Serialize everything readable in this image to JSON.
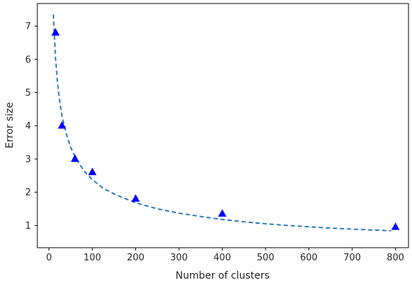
{
  "chart_data": {
    "type": "scatter",
    "title": "",
    "xlabel": "Number of clusters",
    "ylabel": "Error size",
    "xlim": [
      -27,
      830
    ],
    "ylim": [
      0.33,
      7.68
    ],
    "xticks": [
      0,
      100,
      200,
      300,
      400,
      500,
      600,
      700,
      800
    ],
    "yticks": [
      1,
      2,
      3,
      4,
      5,
      6,
      7
    ],
    "grid": false,
    "legend": "none",
    "series": [
      {
        "kind": "points",
        "marker": "triangle",
        "color": "#0000ff",
        "x": [
          15,
          30,
          60,
          100,
          200,
          400,
          800
        ],
        "y": [
          6.8,
          4.0,
          3.0,
          2.6,
          1.8,
          1.35,
          0.95
        ]
      },
      {
        "kind": "fitted-curve",
        "style": "dashed",
        "color": "#2b7bba",
        "x": [
          10,
          15,
          20,
          25,
          30,
          40,
          50,
          60,
          80,
          100,
          125,
          150,
          200,
          250,
          300,
          350,
          400,
          450,
          500,
          550,
          600,
          650,
          700,
          750,
          790
        ],
        "y": [
          7.35,
          6.05,
          5.25,
          4.7,
          4.3,
          3.75,
          3.35,
          3.08,
          2.65,
          2.38,
          2.12,
          1.95,
          1.68,
          1.5,
          1.37,
          1.27,
          1.18,
          1.11,
          1.05,
          1.0,
          0.96,
          0.92,
          0.89,
          0.86,
          0.84
        ]
      }
    ]
  }
}
